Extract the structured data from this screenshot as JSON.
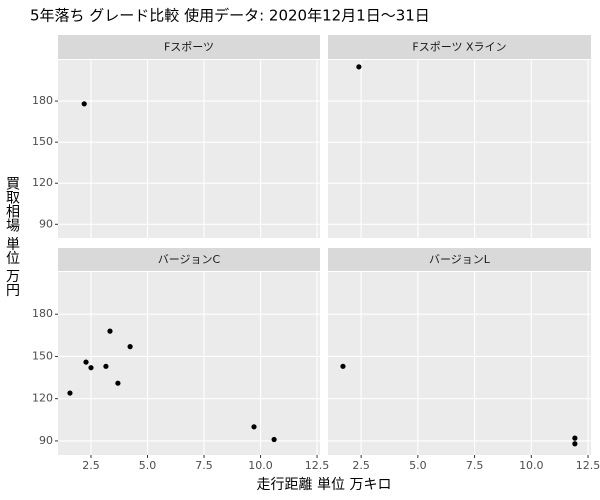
{
  "chart_data": {
    "type": "scatter",
    "title": "5年落ち グレード比較 使用データ: 2020年12月1日～31日",
    "x_label": "走行距離 単位 万キロ",
    "y_label": "買取相場 単位 万円",
    "xlim": [
      1.04,
      12.63
    ],
    "ylim": [
      80,
      210
    ],
    "xticks": [
      2.5,
      {
        "value": 5,
        "label": "5.0"
      },
      7.5,
      {
        "value": 10,
        "label": "10.0"
      },
      12.5
    ],
    "yticks": [
      90,
      120,
      150,
      180
    ],
    "grid": true,
    "color": "#000000",
    "panels": [
      {
        "name": "Fスポーツ",
        "x": [
          2.2
        ],
        "values": [
          178
        ]
      },
      {
        "name": "Fスポーツ Xライン",
        "x": [
          2.4
        ],
        "values": [
          205
        ]
      },
      {
        "name": "バージョンC",
        "x": [
          1.57,
          2.28,
          2.5,
          3.16,
          3.34,
          3.69,
          4.23,
          9.71,
          10.6
        ],
        "values": [
          124,
          146,
          142,
          143,
          168,
          131,
          157,
          100,
          91
        ]
      },
      {
        "name": "バージョンL",
        "x": [
          1.7,
          11.92,
          11.92
        ],
        "values": [
          143,
          92,
          88
        ]
      }
    ]
  }
}
